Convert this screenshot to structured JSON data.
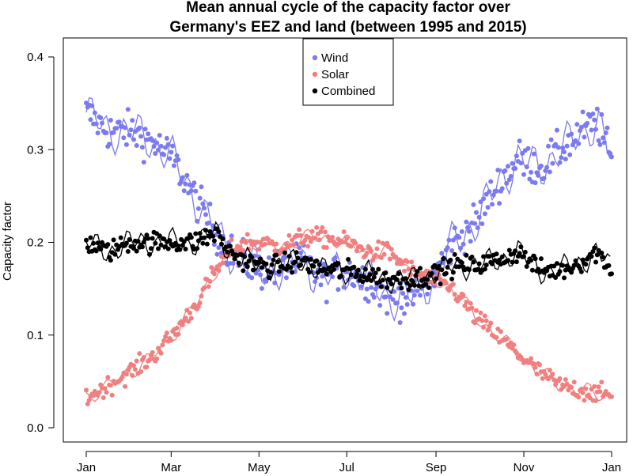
{
  "chart_data": {
    "type": "scatter",
    "title_line1": "Mean annual cycle of the capacity factor over",
    "title_line2": "Germany's EEZ and land (between 1995 and 2015)",
    "xlabel": "",
    "ylabel": "Capacity factor",
    "xlim": [
      0,
      365
    ],
    "ylim": [
      0.0,
      0.4
    ],
    "x_ticks": [
      {
        "day": 0,
        "label": "Jan"
      },
      {
        "day": 59,
        "label": "Mar"
      },
      {
        "day": 120,
        "label": "May"
      },
      {
        "day": 181,
        "label": "Jul"
      },
      {
        "day": 243,
        "label": "Sep"
      },
      {
        "day": 304,
        "label": "Nov"
      },
      {
        "day": 365,
        "label": "Jan"
      }
    ],
    "y_ticks": [
      {
        "value": 0.0,
        "label": "0.0"
      },
      {
        "value": 0.1,
        "label": "0.1"
      },
      {
        "value": 0.2,
        "label": "0.2"
      },
      {
        "value": 0.3,
        "label": "0.3"
      },
      {
        "value": 0.4,
        "label": "0.4"
      }
    ],
    "grid": false,
    "legend_position": "top-center",
    "series": [
      {
        "name": "Wind",
        "color": "#7b7bf0",
        "marker": "point",
        "days": [
          0,
          15,
          30,
          45,
          60,
          75,
          90,
          100,
          110,
          120,
          135,
          150,
          165,
          180,
          195,
          210,
          225,
          240,
          255,
          270,
          285,
          300,
          315,
          330,
          345,
          355,
          365
        ],
        "values": [
          0.34,
          0.32,
          0.32,
          0.31,
          0.29,
          0.25,
          0.21,
          0.19,
          0.18,
          0.17,
          0.17,
          0.18,
          0.16,
          0.17,
          0.16,
          0.14,
          0.14,
          0.16,
          0.2,
          0.22,
          0.26,
          0.29,
          0.28,
          0.3,
          0.32,
          0.33,
          0.29
        ]
      },
      {
        "name": "Solar",
        "color": "#f08080",
        "marker": "point",
        "days": [
          0,
          15,
          30,
          45,
          60,
          75,
          90,
          100,
          110,
          120,
          135,
          150,
          165,
          180,
          195,
          210,
          225,
          240,
          255,
          270,
          285,
          300,
          315,
          330,
          345,
          355,
          365
        ],
        "values": [
          0.033,
          0.045,
          0.06,
          0.075,
          0.1,
          0.13,
          0.17,
          0.19,
          0.2,
          0.2,
          0.195,
          0.205,
          0.205,
          0.2,
          0.19,
          0.19,
          0.17,
          0.16,
          0.15,
          0.12,
          0.1,
          0.08,
          0.06,
          0.045,
          0.04,
          0.037,
          0.035
        ]
      },
      {
        "name": "Combined",
        "color": "#000000",
        "marker": "point",
        "days": [
          0,
          15,
          30,
          45,
          60,
          75,
          90,
          100,
          110,
          120,
          135,
          150,
          165,
          180,
          195,
          210,
          225,
          240,
          255,
          270,
          285,
          300,
          315,
          330,
          345,
          355,
          365
        ],
        "values": [
          0.2,
          0.19,
          0.2,
          0.2,
          0.2,
          0.2,
          0.21,
          0.19,
          0.18,
          0.175,
          0.175,
          0.18,
          0.17,
          0.17,
          0.165,
          0.16,
          0.16,
          0.165,
          0.175,
          0.175,
          0.18,
          0.19,
          0.17,
          0.17,
          0.18,
          0.19,
          0.17
        ]
      }
    ]
  }
}
